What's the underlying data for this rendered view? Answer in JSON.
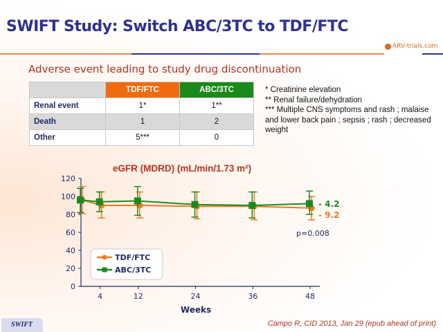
{
  "title": "SWIFT Study: Switch ABC/3TC to TDF/FTC",
  "logo": "ARV-trials.com",
  "subtitle": "Adverse event leading to study drug discontinuation",
  "table": {
    "headers": [
      "",
      "TDF/FTC",
      "ABC/3TC"
    ],
    "header_colors": [
      "#d9d9d9",
      "#f26a10",
      "#1a8a1a"
    ],
    "rows": [
      [
        "Renal event",
        "1*",
        "1**"
      ],
      [
        "Death",
        "1",
        "2"
      ],
      [
        "Other",
        "5***",
        "0"
      ]
    ]
  },
  "notes": [
    "* Creatinine elevation",
    "** Renal failure/dehydration",
    "*** Multiple CNS symptoms and rash ; malaise and lower back pain ; sepsis ; rash ; decreased weight"
  ],
  "chart_data": {
    "type": "line",
    "title": "eGFR (MDRD) (mL/min/1.73 m²)",
    "xlabel": "Weeks",
    "ylabel": "",
    "x": [
      0,
      4,
      12,
      24,
      36,
      48
    ],
    "xticks": [
      "4",
      "12",
      "24",
      "36",
      "48"
    ],
    "xtick_values": [
      4,
      12,
      24,
      36,
      48
    ],
    "yticks": [
      0,
      20,
      40,
      60,
      80,
      100,
      120
    ],
    "ylim": [
      0,
      120
    ],
    "legend_placement": "bottom-left",
    "series": [
      {
        "name": "TDF/FTC",
        "color": "#f07a20",
        "marker": "circle",
        "values": [
          96,
          90,
          90,
          89,
          89,
          87
        ],
        "lower": [
          81,
          76,
          76,
          75,
          74,
          74
        ],
        "upper": [
          111,
          105,
          105,
          105,
          105,
          100
        ],
        "end_label": "- 9.2"
      },
      {
        "name": "ABC/3TC",
        "color": "#1a8a1a",
        "marker": "square",
        "values": [
          96,
          94,
          95,
          91,
          90,
          92
        ],
        "lower": [
          82,
          83,
          79,
          77,
          76,
          80
        ],
        "upper": [
          109,
          105,
          111,
          105,
          105,
          106
        ],
        "end_label": "- 4.2"
      }
    ],
    "annotation": "p=0.008"
  },
  "footer": {
    "tag": "SWIFT",
    "citation": "Campo R, CID 2013, Jan 29 (epub ahead of print)"
  }
}
